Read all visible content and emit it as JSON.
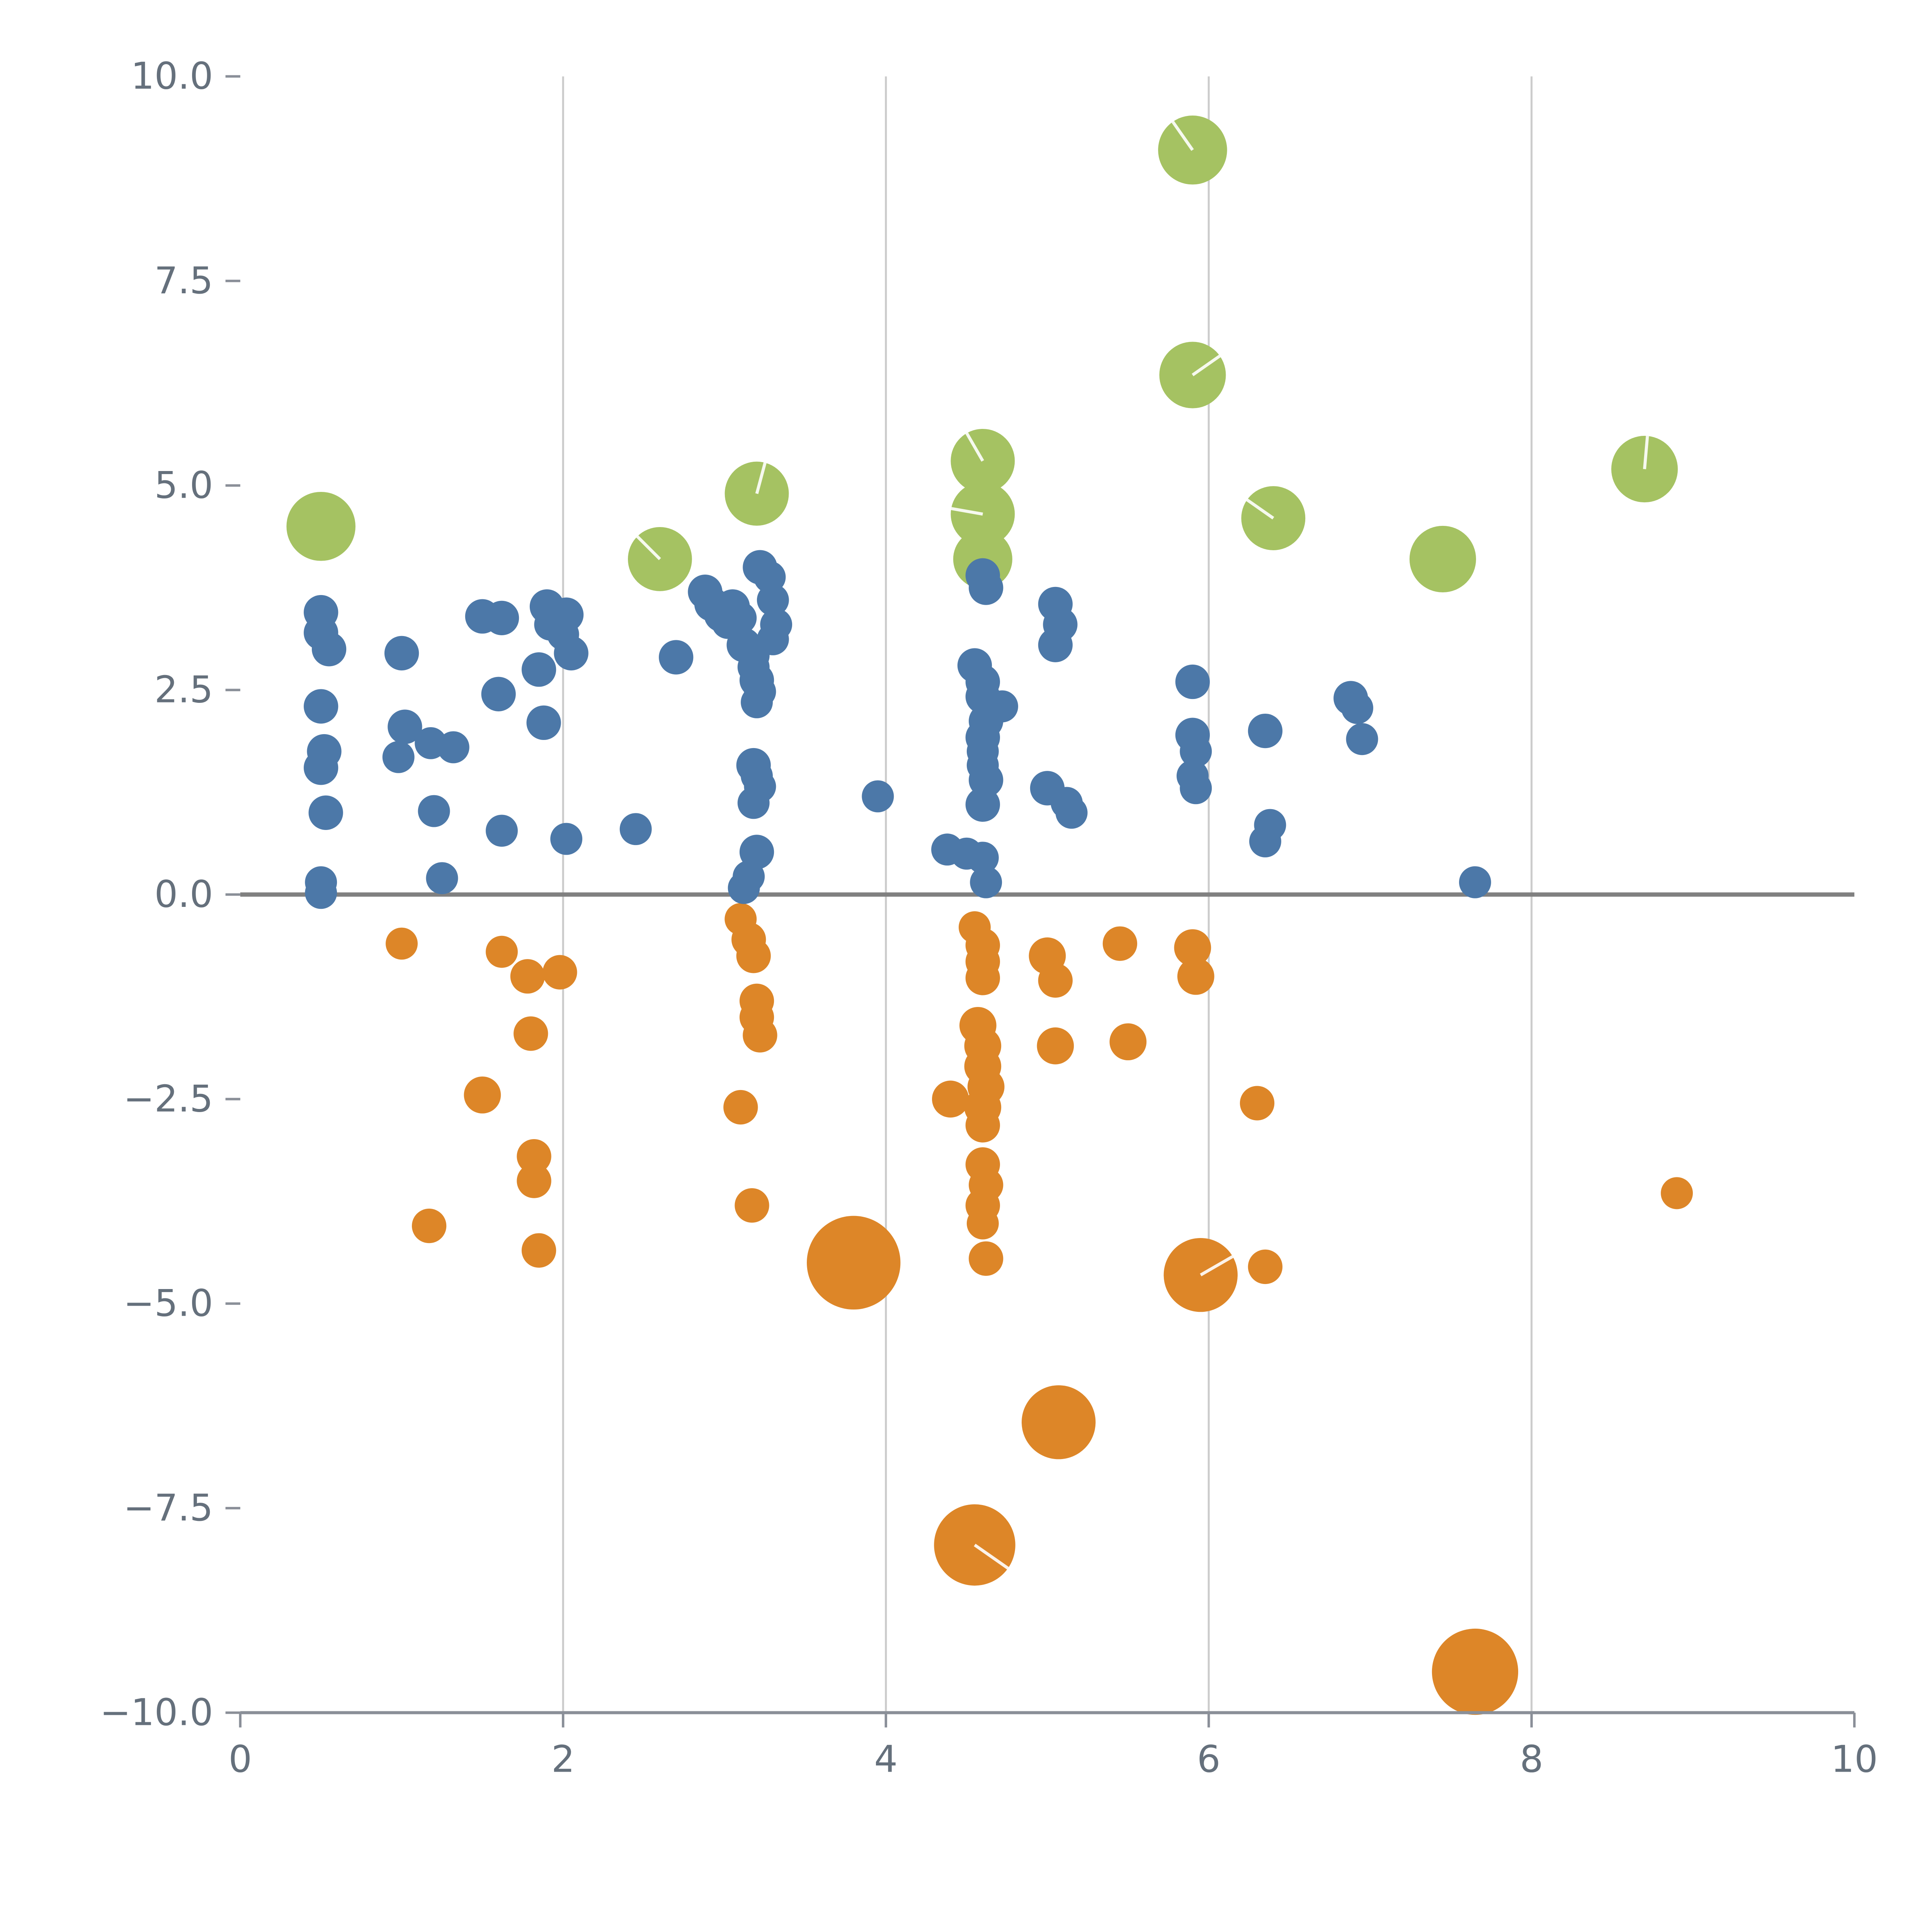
{
  "figure": {
    "background": "#ffffff"
  },
  "chart_data": {
    "type": "scatter",
    "title": "",
    "xlabel": "",
    "ylabel": "",
    "xlim": [
      0,
      10
    ],
    "ylim": [
      -10,
      10
    ],
    "grid": {
      "vertical_at": [
        2,
        4,
        6,
        8
      ],
      "color": "#cccccc",
      "width": 1.6
    },
    "zero_line": {
      "y": 0,
      "color": "#808080",
      "width": 3.5
    },
    "axis": {
      "spine_color": "#8a8f98",
      "spine_width": 2.5,
      "tick_color": "#8a8f98",
      "label_color": "#65707c",
      "label_size": 30
    },
    "xticks": {
      "values": [
        0,
        2,
        4,
        6,
        8,
        10
      ],
      "labels": [
        "0",
        "2",
        "4",
        "6",
        "8",
        "10"
      ]
    },
    "yticks": {
      "values": [
        -10,
        -7.5,
        -5,
        -2.5,
        0,
        2.5,
        5,
        7.5,
        10
      ],
      "labels": [
        "−10.0",
        "−7.5",
        "−5.0",
        "−2.5",
        "0.0",
        "2.5",
        "5.0",
        "7.5",
        "10.0"
      ]
    },
    "legend": {
      "visible": false
    },
    "series": [
      {
        "name": "green",
        "color": "#a5c262",
        "points": [
          [
            0.5,
            4.5,
            28
          ],
          [
            2.6,
            4.1,
            26,
            135
          ],
          [
            3.2,
            4.9,
            26,
            75
          ],
          [
            4.6,
            5.3,
            26,
            120
          ],
          [
            4.6,
            4.65,
            26,
            170
          ],
          [
            4.6,
            4.1,
            24
          ],
          [
            5.9,
            9.1,
            28,
            125
          ],
          [
            5.9,
            6.35,
            27,
            35
          ],
          [
            6.4,
            4.6,
            26,
            145
          ],
          [
            7.45,
            4.1,
            27
          ],
          [
            8.7,
            5.2,
            27,
            85
          ]
        ]
      },
      {
        "name": "orange",
        "color": "#dd8628",
        "points": [
          [
            1.0,
            -0.6,
            13
          ],
          [
            1.17,
            -4.05,
            14
          ],
          [
            1.5,
            -2.45,
            15
          ],
          [
            1.62,
            -0.7,
            13
          ],
          [
            1.78,
            -1.0,
            14
          ],
          [
            1.8,
            -1.7,
            14
          ],
          [
            1.82,
            -3.2,
            14
          ],
          [
            1.82,
            -3.5,
            14
          ],
          [
            1.85,
            -4.35,
            14
          ],
          [
            1.98,
            -0.95,
            14
          ],
          [
            3.1,
            -0.3,
            13
          ],
          [
            3.15,
            -0.55,
            14
          ],
          [
            3.18,
            -0.75,
            14
          ],
          [
            3.2,
            -1.3,
            14
          ],
          [
            3.2,
            -1.5,
            14
          ],
          [
            3.22,
            -1.72,
            14
          ],
          [
            3.1,
            -2.6,
            14
          ],
          [
            3.17,
            -3.8,
            14
          ],
          [
            3.8,
            -4.5,
            38
          ],
          [
            4.4,
            -2.5,
            15
          ],
          [
            4.55,
            -0.4,
            13
          ],
          [
            4.6,
            -0.62,
            14
          ],
          [
            4.6,
            -0.82,
            14
          ],
          [
            4.6,
            -1.02,
            14
          ],
          [
            4.57,
            -1.6,
            15
          ],
          [
            4.6,
            -1.85,
            15
          ],
          [
            4.6,
            -2.1,
            15
          ],
          [
            4.62,
            -2.35,
            15
          ],
          [
            4.6,
            -2.6,
            15
          ],
          [
            4.6,
            -2.82,
            14
          ],
          [
            4.6,
            -3.3,
            14
          ],
          [
            4.62,
            -3.55,
            14
          ],
          [
            4.6,
            -3.8,
            14
          ],
          [
            4.6,
            -4.02,
            13
          ],
          [
            4.62,
            -4.45,
            14
          ],
          [
            4.55,
            -7.95,
            33,
            -35
          ],
          [
            5.0,
            -0.75,
            15
          ],
          [
            5.05,
            -1.05,
            14
          ],
          [
            5.05,
            -1.85,
            15
          ],
          [
            5.07,
            -6.45,
            30
          ],
          [
            5.45,
            -0.6,
            14
          ],
          [
            5.5,
            -1.8,
            15
          ],
          [
            5.9,
            -0.65,
            15
          ],
          [
            5.92,
            -1.0,
            15
          ],
          [
            5.95,
            -4.65,
            30,
            30
          ],
          [
            6.3,
            -2.55,
            14
          ],
          [
            6.35,
            -4.55,
            14
          ],
          [
            7.65,
            -9.5,
            35
          ],
          [
            8.9,
            -3.65,
            13
          ]
        ]
      },
      {
        "name": "blue",
        "color": "#4c78a8",
        "points": [
          [
            0.5,
            3.45,
            14
          ],
          [
            0.5,
            3.2,
            14
          ],
          [
            0.55,
            3.0,
            14
          ],
          [
            0.5,
            2.3,
            14
          ],
          [
            0.52,
            1.75,
            14
          ],
          [
            0.5,
            1.55,
            14
          ],
          [
            0.53,
            1.0,
            14
          ],
          [
            0.5,
            0.15,
            13
          ],
          [
            0.5,
            0.02,
            13
          ],
          [
            1.0,
            2.95,
            14
          ],
          [
            1.02,
            2.05,
            14
          ],
          [
            0.98,
            1.68,
            13
          ],
          [
            1.18,
            1.85,
            13
          ],
          [
            1.2,
            1.02,
            13
          ],
          [
            1.25,
            0.2,
            13
          ],
          [
            1.32,
            1.8,
            13
          ],
          [
            1.5,
            3.4,
            14
          ],
          [
            1.62,
            3.38,
            14
          ],
          [
            1.6,
            2.45,
            14
          ],
          [
            1.62,
            0.78,
            13
          ],
          [
            1.85,
            2.75,
            14
          ],
          [
            1.9,
            3.52,
            14
          ],
          [
            1.92,
            3.3,
            13
          ],
          [
            1.88,
            2.1,
            14
          ],
          [
            2.02,
            3.42,
            14
          ],
          [
            2.0,
            3.18,
            13
          ],
          [
            2.05,
            2.95,
            14
          ],
          [
            2.02,
            0.68,
            13
          ],
          [
            2.45,
            0.8,
            13
          ],
          [
            2.7,
            2.9,
            14
          ],
          [
            2.88,
            3.7,
            14
          ],
          [
            2.92,
            3.55,
            14
          ],
          [
            2.98,
            3.42,
            14
          ],
          [
            3.05,
            3.52,
            14
          ],
          [
            3.02,
            3.32,
            13
          ],
          [
            3.1,
            3.38,
            13
          ],
          [
            3.12,
            3.05,
            14
          ],
          [
            3.18,
            2.92,
            13
          ],
          [
            3.18,
            2.78,
            13
          ],
          [
            3.2,
            2.62,
            14
          ],
          [
            3.22,
            2.48,
            13
          ],
          [
            3.2,
            2.35,
            13
          ],
          [
            3.18,
            1.58,
            14
          ],
          [
            3.2,
            1.45,
            13
          ],
          [
            3.22,
            1.32,
            13
          ],
          [
            3.18,
            1.12,
            13
          ],
          [
            3.2,
            0.52,
            14
          ],
          [
            3.15,
            0.22,
            13
          ],
          [
            3.12,
            0.08,
            13
          ],
          [
            3.22,
            4.0,
            14
          ],
          [
            3.28,
            3.88,
            13
          ],
          [
            3.3,
            3.6,
            13
          ],
          [
            3.32,
            3.3,
            13
          ],
          [
            3.3,
            3.12,
            13
          ],
          [
            3.95,
            1.2,
            13
          ],
          [
            4.38,
            0.55,
            13
          ],
          [
            4.5,
            0.5,
            13
          ],
          [
            4.55,
            2.8,
            14
          ],
          [
            4.6,
            3.9,
            14
          ],
          [
            4.62,
            3.75,
            14
          ],
          [
            4.6,
            2.6,
            14
          ],
          [
            4.6,
            2.42,
            14
          ],
          [
            4.62,
            2.12,
            14
          ],
          [
            4.6,
            1.92,
            14
          ],
          [
            4.6,
            1.75,
            13
          ],
          [
            4.6,
            1.58,
            13
          ],
          [
            4.62,
            1.4,
            14
          ],
          [
            4.6,
            1.1,
            14
          ],
          [
            4.6,
            0.45,
            13
          ],
          [
            4.62,
            0.15,
            13
          ],
          [
            4.72,
            2.3,
            13
          ],
          [
            5.0,
            1.3,
            14
          ],
          [
            5.05,
            3.55,
            14
          ],
          [
            5.08,
            3.3,
            14
          ],
          [
            5.05,
            3.05,
            14
          ],
          [
            5.12,
            1.12,
            13
          ],
          [
            5.15,
            1.0,
            13
          ],
          [
            5.9,
            2.6,
            14
          ],
          [
            5.9,
            1.95,
            14
          ],
          [
            5.92,
            1.75,
            13
          ],
          [
            5.9,
            1.45,
            13
          ],
          [
            5.92,
            1.3,
            13
          ],
          [
            6.35,
            2.0,
            14
          ],
          [
            6.38,
            0.85,
            13
          ],
          [
            6.35,
            0.65,
            13
          ],
          [
            6.88,
            2.4,
            14
          ],
          [
            6.92,
            2.28,
            13
          ],
          [
            6.95,
            1.9,
            13
          ],
          [
            7.65,
            0.15,
            13
          ]
        ]
      }
    ]
  }
}
